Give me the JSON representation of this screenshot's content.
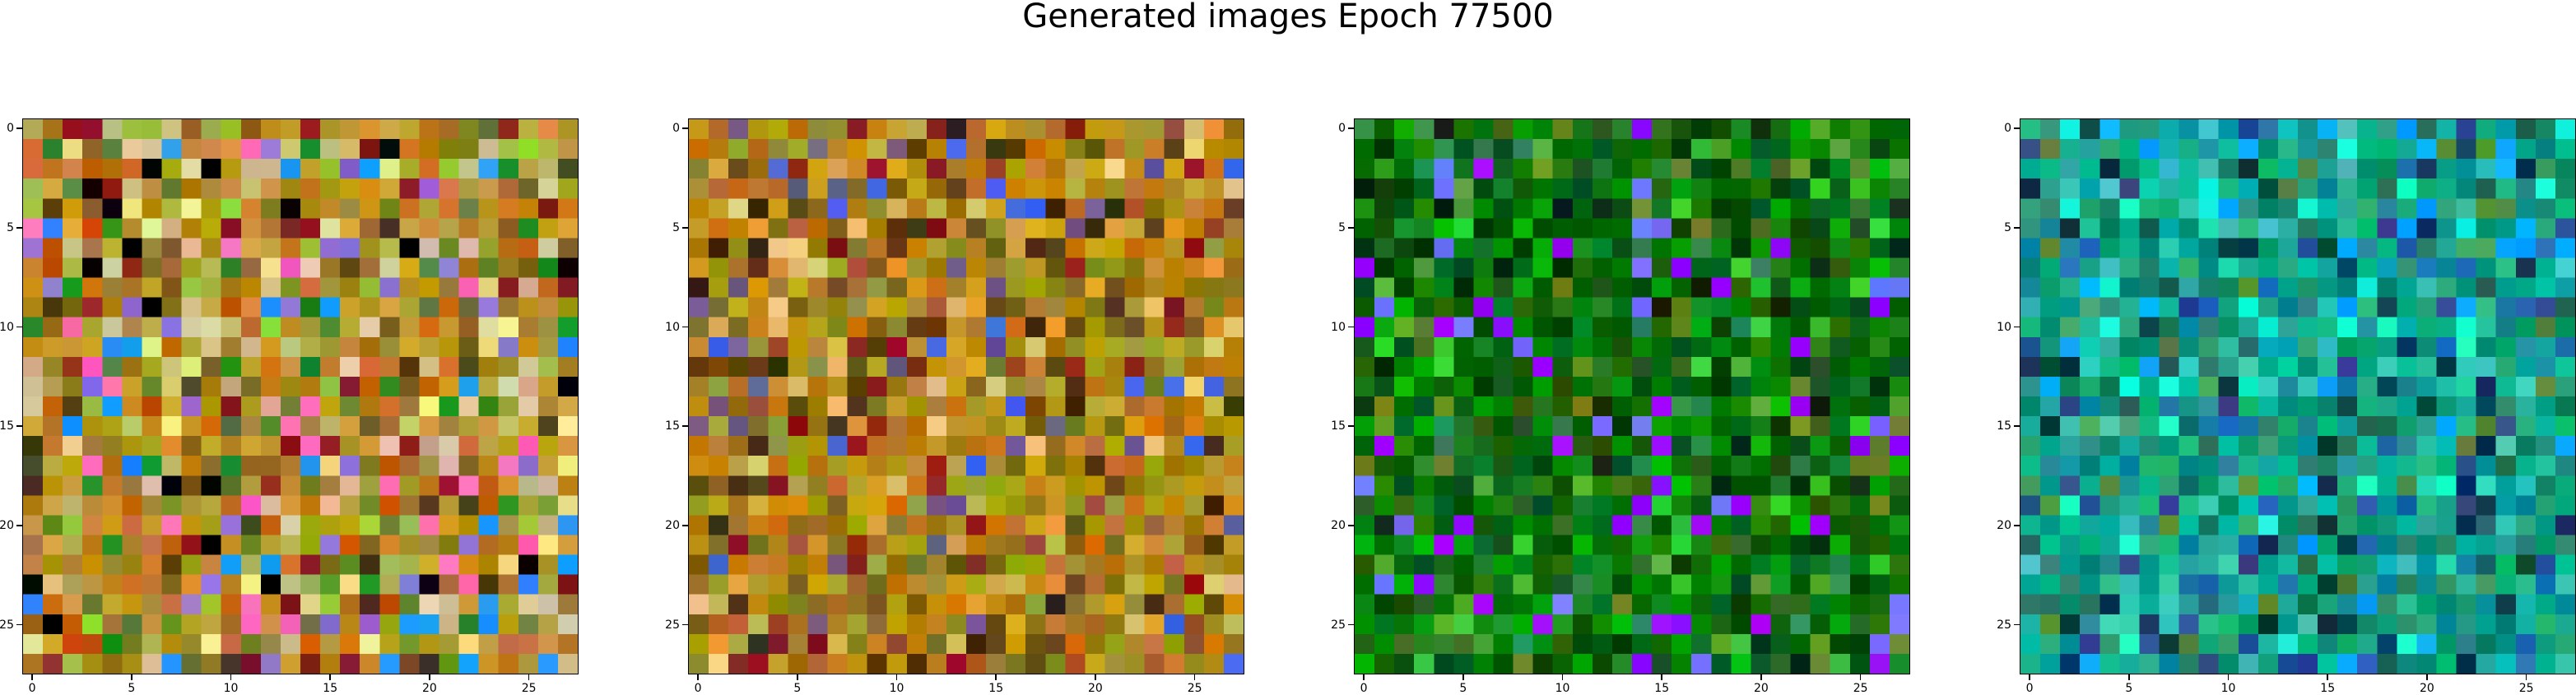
{
  "figure": {
    "title": "Generated images Epoch 77500"
  },
  "chart_data": [
    {
      "type": "heatmap",
      "title": "",
      "grid": false,
      "grid_size": [
        28,
        28
      ],
      "x_ticks": [
        "0",
        "5",
        "10",
        "15",
        "20",
        "25"
      ],
      "y_ticks": [
        "0",
        "5",
        "10",
        "15",
        "20",
        "25"
      ],
      "xlim": [
        -0.5,
        27.5
      ],
      "ylim": [
        27.5,
        -0.5
      ],
      "palette": [
        "#b8860b",
        "#c8a33a",
        "#8a6d1e",
        "#d49a3a",
        "#a8b04a",
        "#7a5a20",
        "#c9c27a",
        "#6b8e23",
        "#e0c9a0",
        "#9acd32",
        "#cc5500",
        "#4b3a1a",
        "#5f7a3a",
        "#d2b48c",
        "#8b2020",
        "#228b22",
        "#9370db",
        "#ff69b4",
        "#f0e68c",
        "#1e90ff",
        "#000000"
      ],
      "dominant_color": "#b88a2a"
    },
    {
      "type": "heatmap",
      "title": "",
      "grid": false,
      "grid_size": [
        28,
        28
      ],
      "x_ticks": [
        "0",
        "5",
        "10",
        "15",
        "20",
        "25"
      ],
      "y_ticks": [
        "0",
        "5",
        "10",
        "15",
        "20",
        "25"
      ],
      "xlim": [
        -0.5,
        27.5
      ],
      "ylim": [
        27.5,
        -0.5
      ],
      "palette": [
        "#b8860b",
        "#c49a1a",
        "#8b6914",
        "#a0522d",
        "#d4a017",
        "#6b4e16",
        "#c8b04a",
        "#7a7a20",
        "#e0a030",
        "#5a3a10",
        "#cc7a00",
        "#8b1a1a",
        "#3a2a10",
        "#9a9a3a",
        "#b87333",
        "#4169e1",
        "#e6c87a",
        "#6a5a8a"
      ],
      "dominant_color": "#b08a18"
    },
    {
      "type": "heatmap",
      "title": "",
      "grid": false,
      "grid_size": [
        28,
        28
      ],
      "x_ticks": [
        "0",
        "5",
        "10",
        "15",
        "20",
        "25"
      ],
      "y_ticks": [
        "0",
        "5",
        "10",
        "15",
        "20",
        "25"
      ],
      "xlim": [
        -0.5,
        27.5
      ],
      "ylim": [
        27.5,
        -0.5
      ],
      "palette": [
        "#006400",
        "#007a00",
        "#008b00",
        "#0a5a0a",
        "#00a000",
        "#1e7a1e",
        "#003a00",
        "#2e8b57",
        "#32cd32",
        "#004d00",
        "#3a6a1a",
        "#00b000",
        "#0b2b0b",
        "#228b22",
        "#7070ff",
        "#9a00ff",
        "#6b8e23",
        "#55aa33"
      ],
      "dominant_color": "#0a6a0a"
    },
    {
      "type": "heatmap",
      "title": "",
      "grid": false,
      "grid_size": [
        28,
        28
      ],
      "x_ticks": [
        "0",
        "5",
        "10",
        "15",
        "20",
        "25"
      ],
      "y_ticks": [
        "0",
        "5",
        "10",
        "15",
        "20",
        "25"
      ],
      "xlim": [
        -0.5,
        27.5
      ],
      "ylim": [
        27.5,
        -0.5
      ],
      "palette": [
        "#00a080",
        "#20b090",
        "#008a6a",
        "#1e9a8a",
        "#00c0a0",
        "#2a7a6a",
        "#1a6a5a",
        "#00b0b0",
        "#40c0c0",
        "#1e6ab0",
        "#0a3a5a",
        "#3aa070",
        "#30d0b0",
        "#00aaff",
        "#2a4a8a",
        "#5a8a3a",
        "#003a3a",
        "#1affd0"
      ],
      "dominant_color": "#10a085"
    }
  ]
}
